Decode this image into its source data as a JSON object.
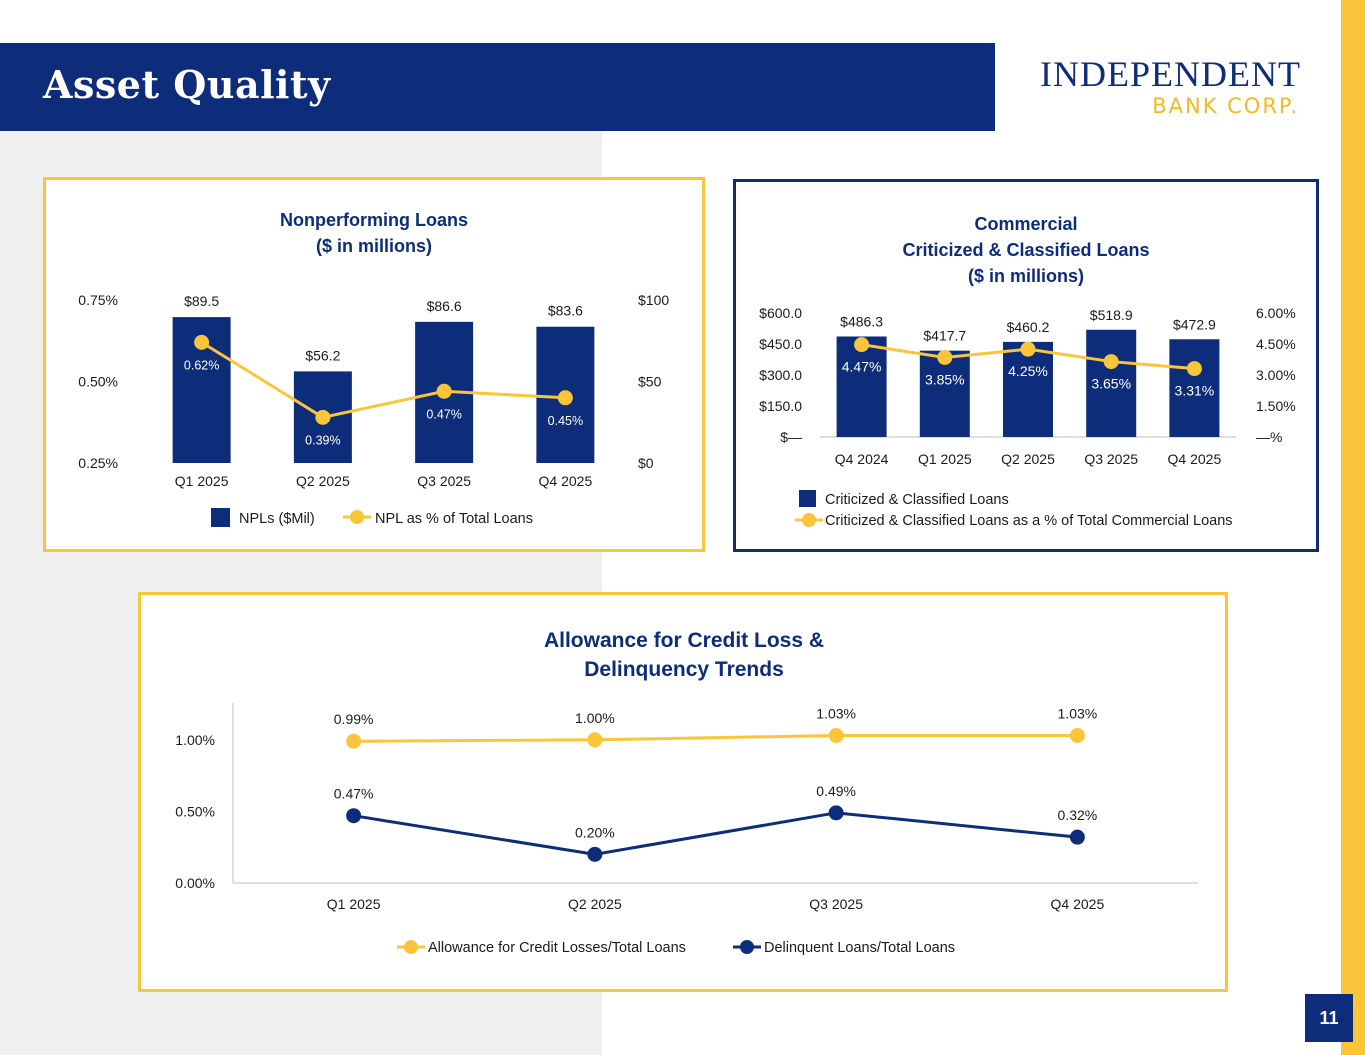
{
  "header": {
    "title": "Asset Quality"
  },
  "logo": {
    "line1": "INDEPENDENT",
    "line2": "BANK CORP."
  },
  "page_number": "11",
  "colors": {
    "navy": "#0d2c7a",
    "gold": "#fbc53a"
  },
  "chart_data": [
    {
      "id": "npl",
      "type": "bar",
      "title_lines": [
        "Nonperforming Loans",
        "($ in millions)"
      ],
      "categories": [
        "Q1 2025",
        "Q2 2025",
        "Q3 2025",
        "Q4 2025"
      ],
      "series": [
        {
          "name": "NPLs ($Mil)",
          "type": "bar",
          "axis": "right",
          "values": [
            89.5,
            56.2,
            86.6,
            83.6
          ],
          "labels": [
            "$89.5",
            "$56.2",
            "$86.6",
            "$83.6"
          ]
        },
        {
          "name": "NPL as % of Total Loans",
          "type": "line",
          "axis": "left",
          "values": [
            0.62,
            0.39,
            0.47,
            0.45
          ],
          "labels": [
            "0.62%",
            "0.39%",
            "0.47%",
            "0.45%"
          ]
        }
      ],
      "left_axis": {
        "ticks": [
          "0.75%",
          "0.50%",
          "0.25%"
        ],
        "tick_values": [
          0.75,
          0.5,
          0.25
        ],
        "ylim": [
          0.25,
          0.75
        ]
      },
      "right_axis": {
        "ticks": [
          "$100",
          "$50",
          "$0"
        ],
        "tick_values": [
          100,
          50,
          0
        ],
        "ylim": [
          0,
          100
        ]
      },
      "legend": [
        "NPLs ($Mil)",
        "NPL as % of Total Loans"
      ]
    },
    {
      "id": "cc",
      "type": "bar",
      "title_lines": [
        "Commercial",
        "Criticized & Classified Loans",
        "($ in millions)"
      ],
      "categories": [
        "Q4 2024",
        "Q1 2025",
        "Q2 2025",
        "Q3 2025",
        "Q4 2025"
      ],
      "series": [
        {
          "name": "Criticized & Classified Loans",
          "type": "bar",
          "axis": "left",
          "values": [
            486.3,
            417.7,
            460.2,
            518.9,
            472.9
          ],
          "labels": [
            "$486.3",
            "$417.7",
            "$460.2",
            "$518.9",
            "$472.9"
          ]
        },
        {
          "name": "Criticized & Classified Loans as a % of Total Commercial Loans",
          "type": "line",
          "axis": "right",
          "values": [
            4.47,
            3.85,
            4.25,
            3.65,
            3.31
          ],
          "labels": [
            "4.47%",
            "3.85%",
            "4.25%",
            "3.65%",
            "3.31%"
          ]
        }
      ],
      "left_axis": {
        "ticks": [
          "$600.0",
          "$450.0",
          "$300.0",
          "$150.0",
          "$—"
        ],
        "tick_values": [
          600,
          450,
          300,
          150,
          0
        ],
        "ylim": [
          0,
          600
        ]
      },
      "right_axis": {
        "ticks": [
          "6.00%",
          "4.50%",
          "3.00%",
          "1.50%",
          "—%"
        ],
        "tick_values": [
          6,
          4.5,
          3,
          1.5,
          0
        ],
        "ylim": [
          0,
          6
        ]
      },
      "legend": [
        "Criticized & Classified Loans",
        "Criticized & Classified Loans as a % of Total Commercial Loans"
      ]
    },
    {
      "id": "acl",
      "type": "line",
      "title_lines": [
        "Allowance for Credit Loss &",
        "Delinquency Trends"
      ],
      "categories": [
        "Q1 2025",
        "Q2 2025",
        "Q3 2025",
        "Q4 2025"
      ],
      "series": [
        {
          "name": "Allowance for Credit Losses/Total Loans",
          "color": "gold",
          "values": [
            0.99,
            1.0,
            1.03,
            1.03
          ],
          "labels": [
            "0.99%",
            "1.00%",
            "1.03%",
            "1.03%"
          ]
        },
        {
          "name": "Delinquent Loans/Total Loans",
          "color": "navy",
          "values": [
            0.47,
            0.2,
            0.49,
            0.32
          ],
          "labels": [
            "0.47%",
            "0.20%",
            "0.49%",
            "0.32%"
          ]
        }
      ],
      "left_axis": {
        "ticks": [
          "1.00%",
          "0.50%",
          "0.00%"
        ],
        "tick_values": [
          1.0,
          0.5,
          0.0
        ],
        "ylim": [
          0,
          1.25
        ]
      },
      "legend": [
        "Allowance for Credit Losses/Total Loans",
        "Delinquent Loans/Total Loans"
      ]
    }
  ]
}
